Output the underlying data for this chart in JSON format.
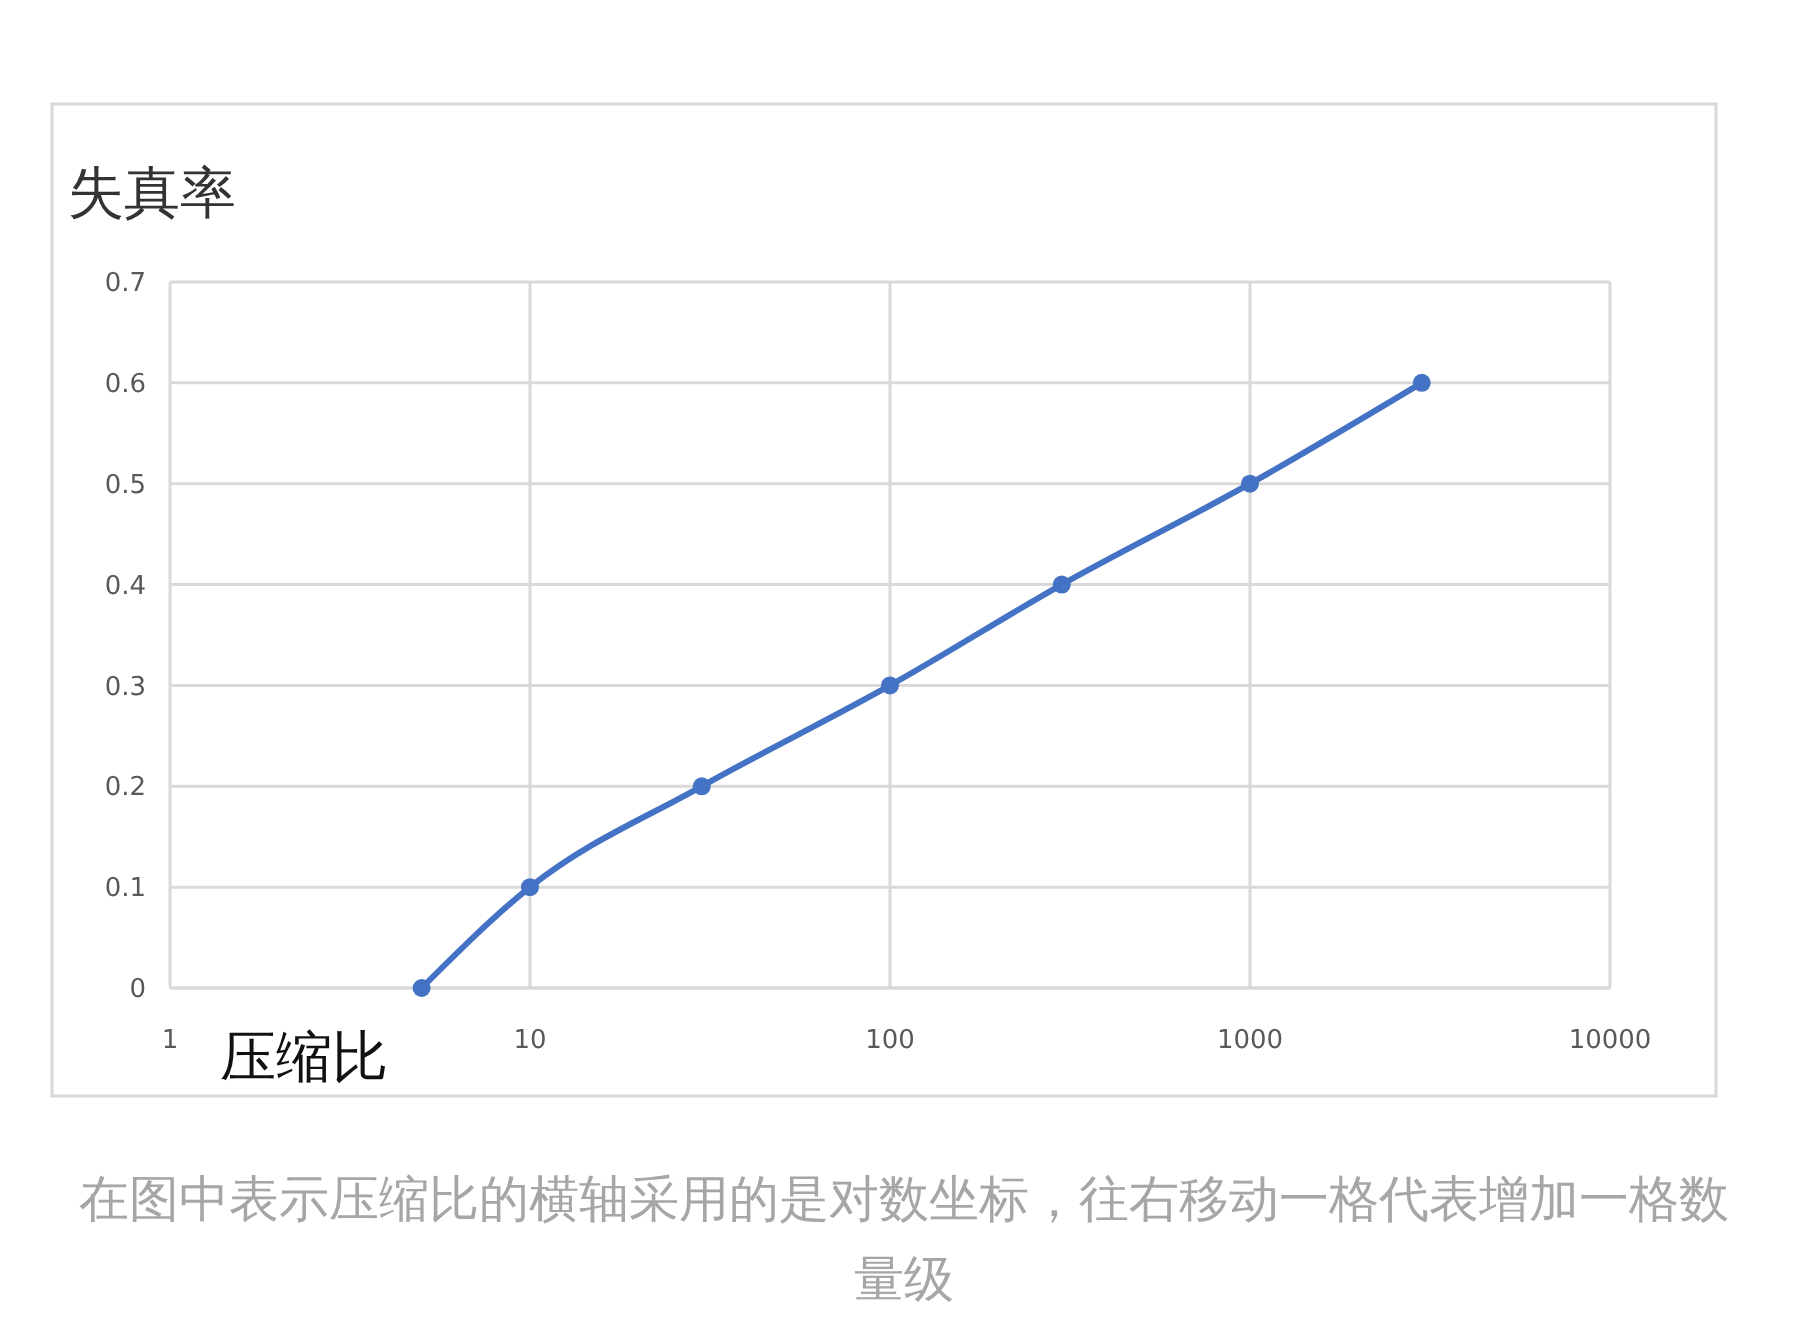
{
  "chart_data": {
    "type": "line",
    "xlabel": "压缩比",
    "ylabel": "失真率",
    "log": "x",
    "x": [
      5,
      10,
      30,
      100,
      300,
      1000,
      3000
    ],
    "series": [
      {
        "color": "#4472c4",
        "values": [
          0,
          0.1,
          0.2,
          0.3,
          0.4,
          0.5,
          0.6
        ]
      }
    ],
    "xlim": [
      1,
      10000
    ],
    "xticks": [
      1,
      10,
      100,
      1000,
      10000
    ],
    "ylim": [
      0,
      0.7
    ],
    "yticks": [
      0,
      0.1,
      0.2,
      0.3,
      0.4,
      0.5,
      0.6,
      0.7
    ],
    "grid": true,
    "marker": "circle",
    "line_style": "solid",
    "annotations": [
      "在图中表示压缩比的横轴采用的是对数坐标，往右移动一格代表增加一格数量级"
    ]
  }
}
